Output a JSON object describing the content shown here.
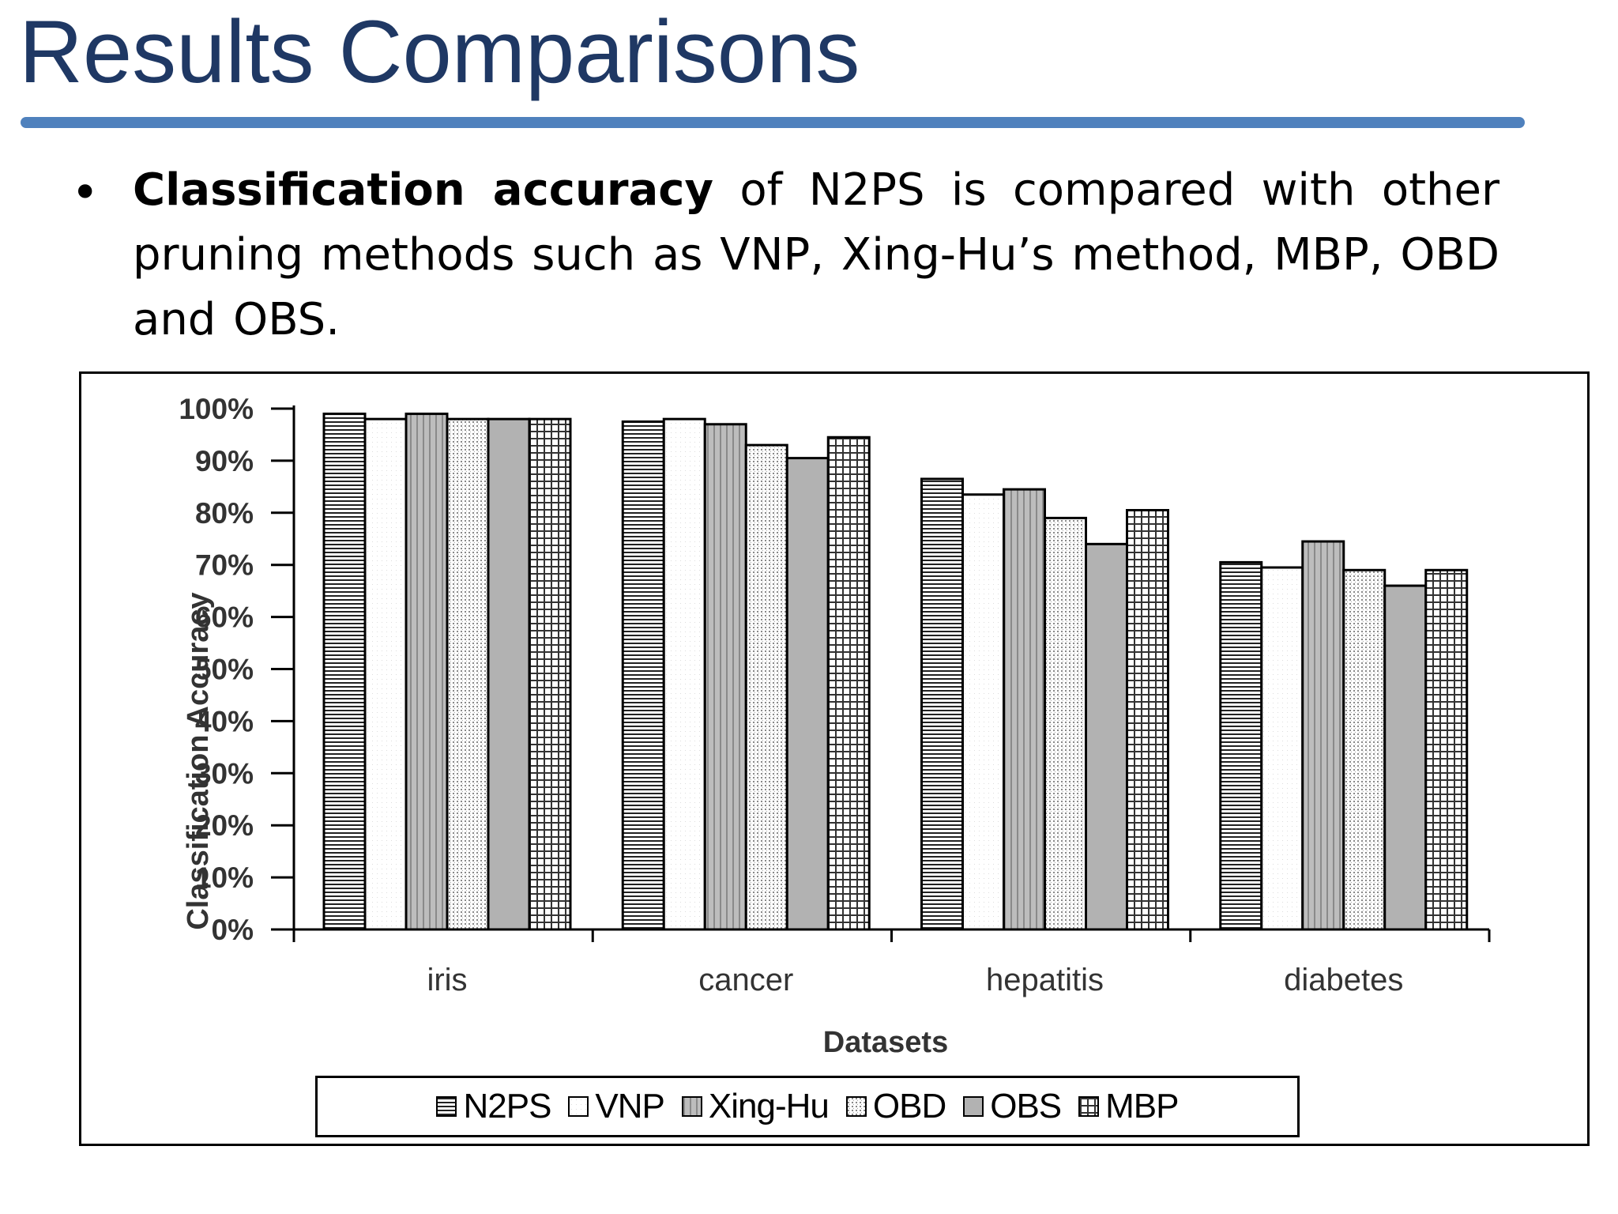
{
  "slide": {
    "title": "Results Comparisons",
    "bullet_bold": "Classification accuracy",
    "bullet_rest": " of N2PS is compared with other pruning methods such as VNP, Xing-Hu’s method, MBP, OBD and OBS."
  },
  "chart_data": {
    "type": "bar",
    "xlabel": "Datasets",
    "ylabel": "Classification Accuracy",
    "categories": [
      "iris",
      "cancer",
      "hepatitis",
      "diabetes"
    ],
    "yticks": [
      "0%",
      "10%",
      "20%",
      "30%",
      "40%",
      "50%",
      "60%",
      "70%",
      "80%",
      "90%",
      "100%"
    ],
    "ylim": [
      0,
      100
    ],
    "grid": false,
    "legend_position": "bottom",
    "series": [
      {
        "name": "N2PS",
        "pattern": "hlines",
        "values": [
          99,
          97.5,
          86.5,
          70.5
        ]
      },
      {
        "name": "VNP",
        "pattern": "white",
        "values": [
          98,
          98,
          83.5,
          69.5
        ]
      },
      {
        "name": "Xing-Hu",
        "pattern": "vgray",
        "values": [
          99,
          97,
          84.5,
          74.5
        ]
      },
      {
        "name": "OBD",
        "pattern": "dots",
        "values": [
          98,
          93,
          79,
          69
        ]
      },
      {
        "name": "OBS",
        "pattern": "gray",
        "values": [
          98,
          90.5,
          74,
          66
        ]
      },
      {
        "name": "MBP",
        "pattern": "grid",
        "values": [
          98,
          94.5,
          80.5,
          69
        ]
      }
    ]
  }
}
